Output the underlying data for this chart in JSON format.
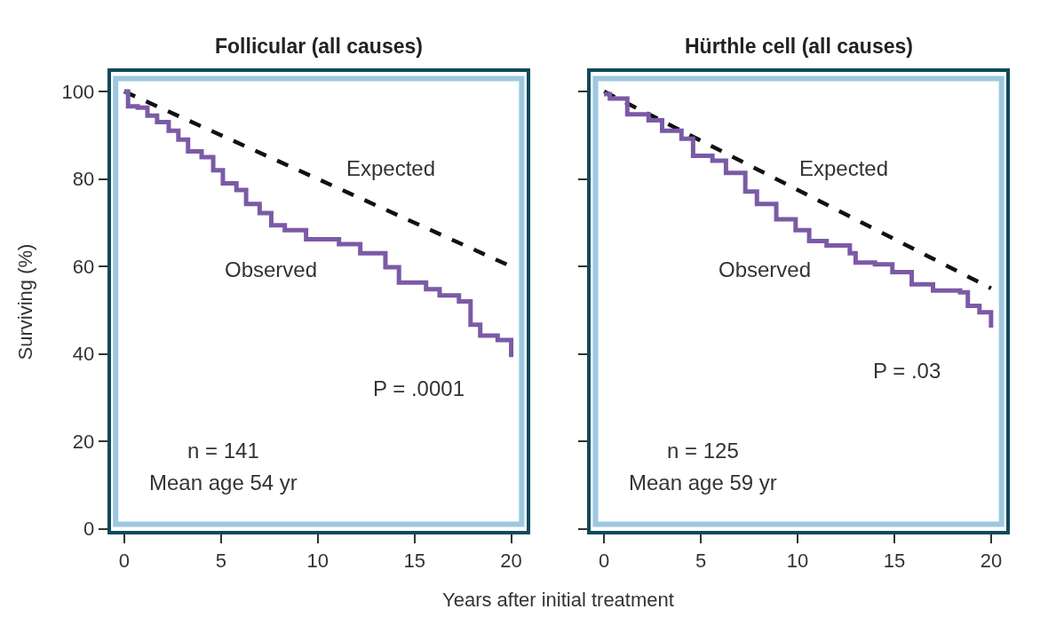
{
  "chart_data": [
    {
      "type": "step",
      "title": "Follicular (all causes)",
      "xlabel": "Years after initial treatment",
      "ylabel": "Surviving (%)",
      "xlim": [
        -0.7,
        20.8
      ],
      "xticks": [
        0,
        5,
        10,
        15,
        20
      ],
      "ylim": [
        -0.5,
        104.5
      ],
      "yticks": [
        0,
        20,
        40,
        60,
        80,
        100
      ],
      "grid": false,
      "marker": "none",
      "series": [
        {
          "type": "line",
          "color": "#111111",
          "line_style": "dashed",
          "x": [
            0,
            20
          ],
          "values": [
            100,
            60
          ]
        },
        {
          "color": "#7b5aa6",
          "line_style": "solid",
          "x": [
            0,
            0.2,
            0.7,
            1.2,
            1.7,
            2.3,
            2.8,
            3.3,
            4,
            4.6,
            5.1,
            5.8,
            6.3,
            7,
            7.6,
            8.3,
            9.4,
            11.1,
            12.2,
            13.5,
            14.2,
            15.6,
            16.3,
            17.3,
            17.9,
            18.4,
            19.3,
            20
          ],
          "values": [
            100,
            96.6,
            96.3,
            94.5,
            93,
            91,
            89,
            86.3,
            85,
            82,
            79,
            77.5,
            74.3,
            72.2,
            69.4,
            68.3,
            66.2,
            65.1,
            63,
            59.8,
            56.3,
            54.8,
            53.4,
            52,
            46.7,
            44.2,
            43.2,
            39.3
          ]
        }
      ],
      "annotations": [
        "Expected",
        "Observed",
        "P = .0001",
        "n = 141",
        "Mean age 54 yr"
      ]
    },
    {
      "type": "step",
      "title": "Hürthle cell (all causes)",
      "tick_labels": "x",
      "xlim": [
        -0.7,
        20.8
      ],
      "xticks": [
        0,
        5,
        10,
        15,
        20
      ],
      "ylim": [
        -0.5,
        104.5
      ],
      "yticks": [
        0,
        20,
        40,
        60,
        80,
        100
      ],
      "grid": false,
      "marker": "none",
      "series": [
        {
          "type": "line",
          "color": "#111111",
          "line_style": "dashed",
          "x": [
            0,
            20
          ],
          "values": [
            100,
            55
          ]
        },
        {
          "color": "#7b5aa6",
          "line_style": "solid",
          "x": [
            0,
            0.3,
            1.2,
            2.3,
            3,
            4,
            4.6,
            5.6,
            6.3,
            7.3,
            7.9,
            8.9,
            9.9,
            10.6,
            11.5,
            12.7,
            13,
            14,
            14.9,
            15.9,
            17,
            18.4,
            18.8,
            19.4,
            20
          ],
          "values": [
            99.4,
            98.4,
            94.8,
            93.4,
            91,
            89.2,
            85.3,
            84.2,
            81.4,
            77.1,
            74.3,
            70.8,
            68.3,
            65.8,
            64.8,
            63,
            60.9,
            60.5,
            58.7,
            55.9,
            54.5,
            54.1,
            51,
            49.5,
            46
          ]
        }
      ],
      "annotations": [
        "Expected",
        "Observed",
        "P = .03",
        "n = 125",
        "Mean age 59 yr"
      ]
    }
  ]
}
